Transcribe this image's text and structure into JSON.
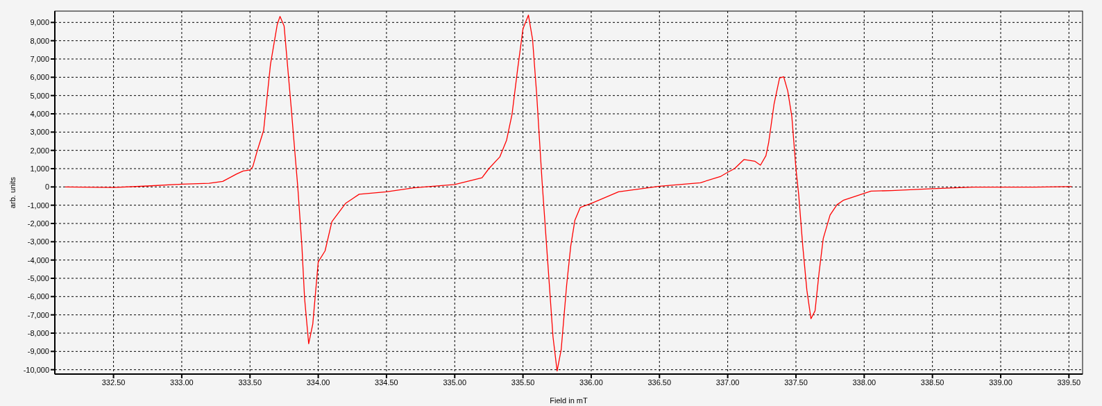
{
  "chart_data": {
    "type": "line",
    "xlabel": "Field in mT",
    "ylabel": "arb. units",
    "xlim": [
      332.07,
      339.6
    ],
    "ylim": [
      -10240,
      9620
    ],
    "xticks": [
      {
        "value": 332.5,
        "label": "332.50"
      },
      {
        "value": 333,
        "label": "333.00"
      },
      {
        "value": 333.5,
        "label": "333.50"
      },
      {
        "value": 334,
        "label": "334.00"
      },
      {
        "value": 334.5,
        "label": "334.50"
      },
      {
        "value": 335,
        "label": "335.00"
      },
      {
        "value": 335.5,
        "label": "335.50"
      },
      {
        "value": 336,
        "label": "336.00"
      },
      {
        "value": 336.5,
        "label": "336.50"
      },
      {
        "value": 337,
        "label": "337.00"
      },
      {
        "value": 337.5,
        "label": "337.50"
      },
      {
        "value": 338,
        "label": "338.00"
      },
      {
        "value": 338.5,
        "label": "338.50"
      },
      {
        "value": 339,
        "label": "339.00"
      },
      {
        "value": 339.5,
        "label": "339.50"
      }
    ],
    "yticks": [
      {
        "value": -10000,
        "label": "-10,000"
      },
      {
        "value": -9000,
        "label": "-9,000"
      },
      {
        "value": -8000,
        "label": "-8,000"
      },
      {
        "value": -7000,
        "label": "-7,000"
      },
      {
        "value": -6000,
        "label": "-6,000"
      },
      {
        "value": -5000,
        "label": "-5,000"
      },
      {
        "value": -4000,
        "label": "-4,000"
      },
      {
        "value": -3000,
        "label": "-3,000"
      },
      {
        "value": -2000,
        "label": "-2,000"
      },
      {
        "value": -1000,
        "label": "-1,000"
      },
      {
        "value": 0,
        "label": "0"
      },
      {
        "value": 1000,
        "label": "1,000"
      },
      {
        "value": 2000,
        "label": "2,000"
      },
      {
        "value": 3000,
        "label": "3,000"
      },
      {
        "value": 4000,
        "label": "4,000"
      },
      {
        "value": 5000,
        "label": "5,000"
      },
      {
        "value": 6000,
        "label": "6,000"
      },
      {
        "value": 7000,
        "label": "7,000"
      },
      {
        "value": 8000,
        "label": "8,000"
      },
      {
        "value": 9000,
        "label": "9,000"
      }
    ],
    "grid": true,
    "line_style": "dashed",
    "marker": "none",
    "x": [
      332.145,
      332.5,
      332.75,
      333.0,
      333.2,
      333.3,
      333.4,
      333.45,
      333.5,
      333.52,
      333.55,
      333.6,
      333.65,
      333.7,
      333.72,
      333.75,
      333.8,
      333.85,
      333.88,
      333.9,
      333.93,
      333.96,
      334.0,
      334.05,
      334.1,
      334.2,
      334.3,
      334.5,
      334.7,
      335.0,
      335.2,
      335.25,
      335.33,
      335.38,
      335.42,
      335.46,
      335.5,
      335.54,
      335.57,
      335.6,
      335.64,
      335.68,
      335.72,
      335.75,
      335.78,
      335.82,
      335.85,
      335.88,
      335.92,
      336.0,
      336.2,
      336.5,
      336.8,
      336.95,
      337.0,
      337.05,
      337.12,
      337.2,
      337.24,
      337.28,
      337.3,
      337.34,
      337.38,
      337.41,
      337.44,
      337.47,
      337.5,
      337.52,
      337.55,
      337.58,
      337.61,
      337.64,
      337.67,
      337.7,
      337.75,
      337.8,
      337.85,
      337.95,
      338.05,
      338.2,
      338.5,
      338.8,
      339.0,
      339.25,
      339.52
    ],
    "series": [
      {
        "color": "#ff0000",
        "line_style": "solid",
        "values": [
          0,
          -30,
          50,
          150,
          200,
          300,
          700,
          870,
          930,
          1100,
          1900,
          3100,
          6700,
          8900,
          9330,
          8800,
          4500,
          0,
          -3200,
          -6100,
          -8580,
          -7500,
          -4100,
          -3500,
          -1900,
          -900,
          -400,
          -270,
          -50,
          130,
          500,
          1000,
          1640,
          2560,
          3980,
          6400,
          8650,
          9400,
          8090,
          5110,
          300,
          -3950,
          -8200,
          -10070,
          -8900,
          -5370,
          -3240,
          -1830,
          -1120,
          -900,
          -270,
          40,
          230,
          580,
          800,
          1000,
          1500,
          1400,
          1190,
          1710,
          2420,
          4550,
          5960,
          6030,
          5250,
          3840,
          1000,
          -410,
          -3240,
          -5650,
          -7210,
          -6780,
          -4660,
          -2820,
          -1540,
          -980,
          -720,
          -480,
          -230,
          -200,
          -100,
          -10,
          -10,
          -10,
          20
        ]
      }
    ]
  }
}
